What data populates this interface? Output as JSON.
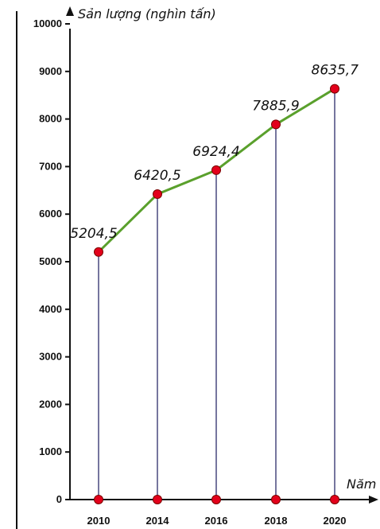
{
  "chart_data": {
    "type": "line",
    "categories": [
      "2010",
      "2014",
      "2016",
      "2018",
      "2020"
    ],
    "values": [
      5204.5,
      6420.5,
      6924.4,
      7885.9,
      8635.7
    ],
    "data_labels": [
      "5204,5",
      "6420,5",
      "6924,4",
      "7885,9",
      "8635,7"
    ],
    "ylabel": "Sản lượng (nghìn tấn)",
    "xlabel": "Năm",
    "ylim": [
      0,
      10000
    ],
    "yticks": [
      0,
      1000,
      2000,
      3000,
      4000,
      5000,
      6000,
      7000,
      8000,
      9000,
      10000
    ],
    "grid": false,
    "colors": {
      "line": "#5aa02c",
      "marker": "#e3001b",
      "droplines": "#1a1a5e",
      "axis": "#111111"
    }
  }
}
